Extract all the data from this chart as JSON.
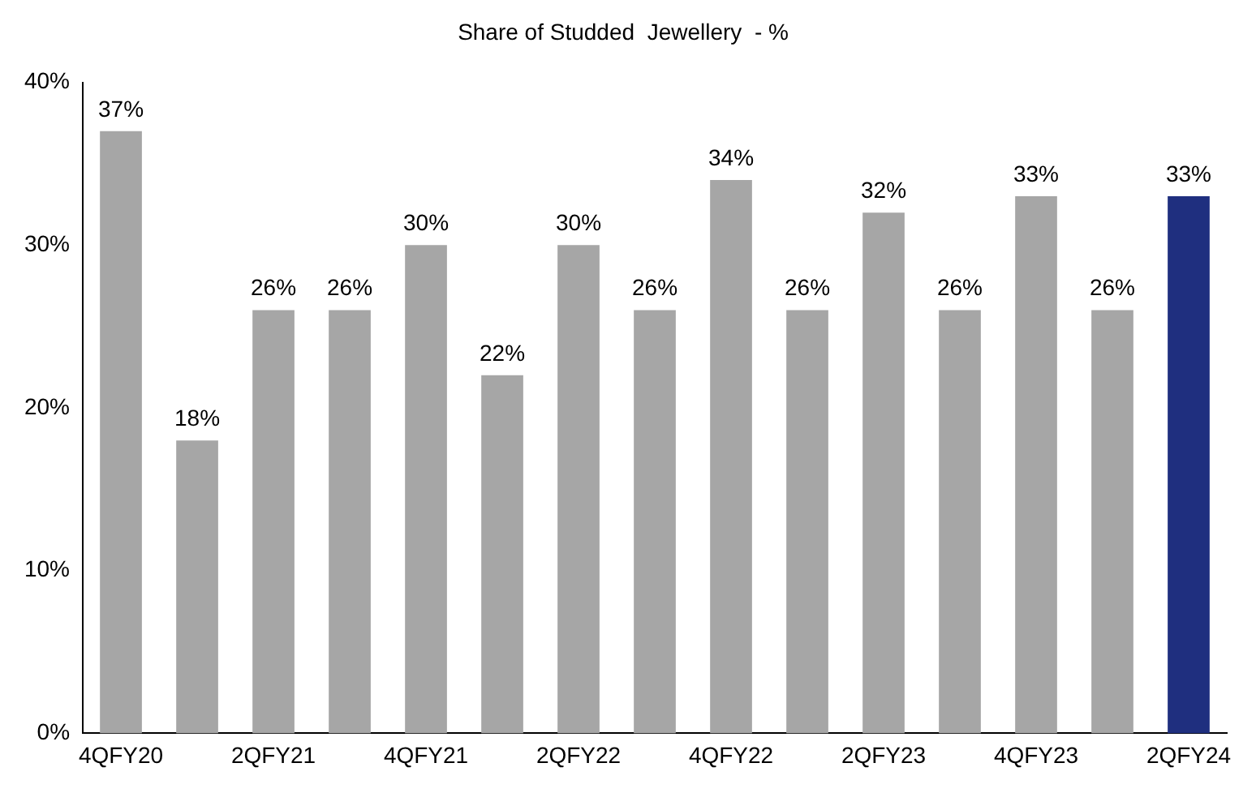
{
  "chart_data": {
    "type": "bar",
    "title": "Share of Studded  Jewellery  - %",
    "categories": [
      "4QFY20",
      null,
      "2QFY21",
      null,
      "4QFY21",
      null,
      "2QFY22",
      null,
      "4QFY22",
      null,
      "2QFY23",
      null,
      "4QFY23",
      null,
      "2QFY24"
    ],
    "values": [
      37,
      18,
      26,
      26,
      30,
      22,
      30,
      26,
      34,
      26,
      32,
      26,
      33,
      26,
      33
    ],
    "value_labels": [
      "37%",
      "18%",
      "26%",
      "26%",
      "30%",
      "22%",
      "30%",
      "26%",
      "34%",
      "26%",
      "32%",
      "26%",
      "33%",
      "26%",
      "33%"
    ],
    "colors": [
      "#a6a6a6",
      "#a6a6a6",
      "#a6a6a6",
      "#a6a6a6",
      "#a6a6a6",
      "#a6a6a6",
      "#a6a6a6",
      "#a6a6a6",
      "#a6a6a6",
      "#a6a6a6",
      "#a6a6a6",
      "#a6a6a6",
      "#a6a6a6",
      "#a6a6a6",
      "#1f2f7f"
    ],
    "ylim": [
      0,
      40
    ],
    "yticks": [
      {
        "value": 0,
        "label": "0%"
      },
      {
        "value": 10,
        "label": "10%"
      },
      {
        "value": 20,
        "label": "20%"
      },
      {
        "value": 30,
        "label": "30%"
      },
      {
        "value": 40,
        "label": "40%"
      }
    ],
    "grid": false,
    "legend": false
  }
}
